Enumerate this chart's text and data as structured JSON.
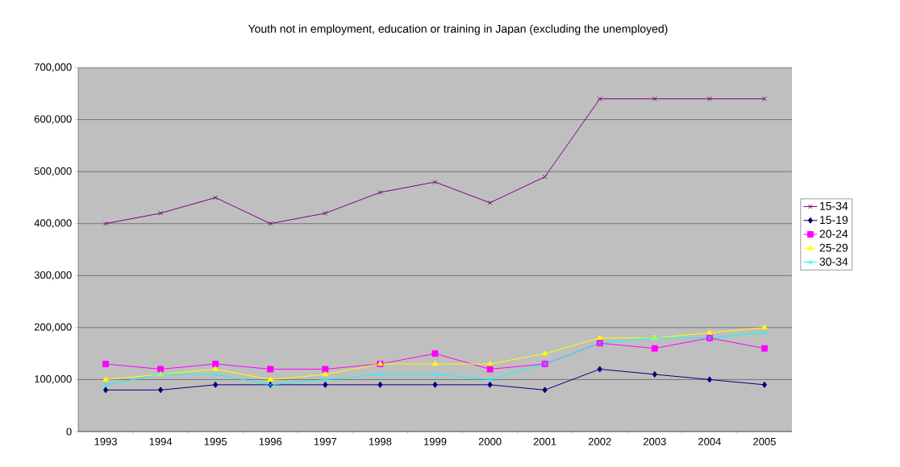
{
  "chart_data": {
    "type": "line",
    "title": "Youth not in employment, education or training in Japan (excluding the unemployed)",
    "categories": [
      "1993",
      "1994",
      "1995",
      "1996",
      "1997",
      "1998",
      "1999",
      "2000",
      "2001",
      "2002",
      "2003",
      "2004",
      "2005"
    ],
    "series": [
      {
        "name": "15-34",
        "color": "#800080",
        "marker": "cross",
        "values": [
          400000,
          420000,
          450000,
          400000,
          420000,
          460000,
          480000,
          440000,
          490000,
          640000,
          640000,
          640000,
          640000
        ]
      },
      {
        "name": "15-19",
        "color": "#000080",
        "marker": "diamond",
        "values": [
          80000,
          80000,
          90000,
          90000,
          90000,
          90000,
          90000,
          90000,
          80000,
          120000,
          110000,
          100000,
          90000
        ]
      },
      {
        "name": "20-24",
        "color": "#ff00ff",
        "marker": "square",
        "values": [
          130000,
          120000,
          130000,
          120000,
          120000,
          130000,
          150000,
          120000,
          130000,
          170000,
          160000,
          180000,
          160000
        ]
      },
      {
        "name": "25-29",
        "color": "#ffff00",
        "marker": "triangle",
        "values": [
          100000,
          110000,
          120000,
          100000,
          110000,
          130000,
          130000,
          130000,
          150000,
          180000,
          180000,
          190000,
          200000
        ]
      },
      {
        "name": "30-34",
        "color": "#00ffff",
        "marker": "cross",
        "values": [
          90000,
          110000,
          110000,
          90000,
          100000,
          110000,
          110000,
          100000,
          130000,
          170000,
          180000,
          180000,
          190000
        ]
      }
    ],
    "ylim": [
      0,
      700000
    ],
    "yticks": [
      0,
      {
        "value": 100000,
        "label": "100,000"
      },
      {
        "value": 200000,
        "label": "200,000"
      },
      {
        "value": 300000,
        "label": "300,000"
      },
      {
        "value": 400000,
        "label": "400,000"
      },
      {
        "value": 500000,
        "label": "500,000"
      },
      {
        "value": 600000,
        "label": "600,000"
      },
      {
        "value": 700000,
        "label": "700,000"
      }
    ],
    "grid": "y",
    "legend": "right",
    "line_style": "solid"
  }
}
